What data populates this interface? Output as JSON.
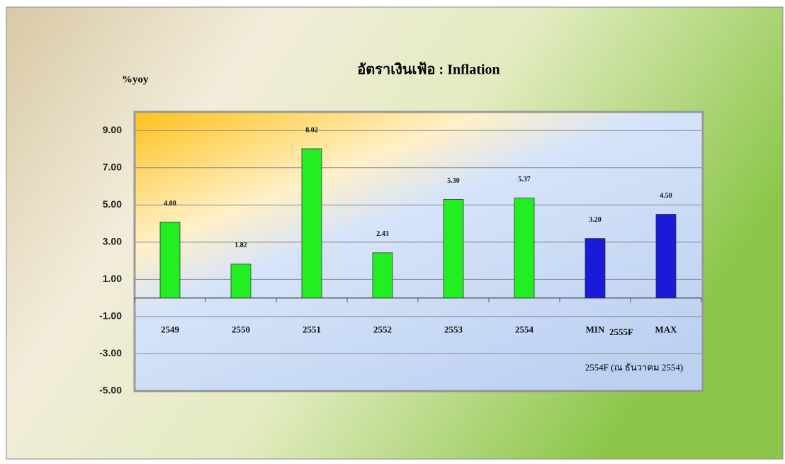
{
  "chart_data": {
    "type": "bar",
    "title": "อัตราเงินเฟ้อ : Inflation",
    "y_label": "%yoy",
    "categories": [
      "2549",
      "2550",
      "2551",
      "2552",
      "2553",
      "2554",
      "MIN",
      "MAX"
    ],
    "values": [
      4.08,
      1.82,
      8.02,
      2.43,
      5.3,
      5.37,
      3.2,
      4.5
    ],
    "value_labels": [
      "4.08",
      "1.82",
      "8.02",
      "2.43",
      "5.30",
      "5.37",
      "3.20",
      "4.50"
    ],
    "colors": [
      "#22ee22",
      "#22ee22",
      "#22ee22",
      "#22ee22",
      "#22ee22",
      "#22ee22",
      "#1a1ad8",
      "#1a1ad8"
    ],
    "group_label": "2555F",
    "note": "2554F (ณ ธันวาคม 2554)",
    "ylim": [
      -5,
      10
    ],
    "yticks": [
      {
        "value": 9,
        "label": "9.00"
      },
      {
        "value": 7,
        "label": "7.00"
      },
      {
        "value": 5,
        "label": "5.00"
      },
      {
        "value": 3,
        "label": "3.00"
      },
      {
        "value": 1,
        "label": "1.00"
      },
      {
        "value": -1,
        "label": "-1.00"
      },
      {
        "value": -3,
        "label": "-3.00"
      },
      {
        "value": -5,
        "label": "-5.00"
      }
    ],
    "grid": true
  }
}
